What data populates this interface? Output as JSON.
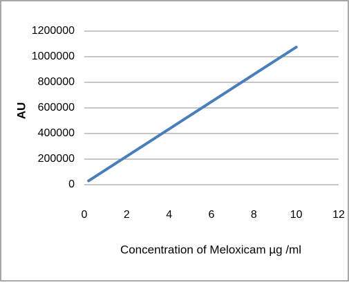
{
  "chart_data": {
    "type": "line",
    "x": [
      0.2,
      10
    ],
    "series": [
      {
        "name": "AU",
        "color": "#4a7ebb",
        "values": [
          30000,
          1075000
        ]
      }
    ],
    "xlim": [
      0,
      12
    ],
    "xticks": [
      0,
      2,
      4,
      6,
      8,
      10,
      12
    ],
    "ylim": [
      0,
      1200000
    ],
    "yticks": [
      0,
      200000,
      400000,
      600000,
      800000,
      1000000,
      1200000
    ],
    "xlabel": "Concentration of Meloxicam  µg /ml",
    "ylabel": "AU",
    "grid": true
  }
}
